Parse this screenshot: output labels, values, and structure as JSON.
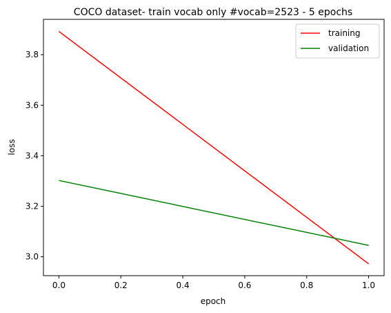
{
  "chart_data": {
    "type": "line",
    "title": "COCO dataset- train vocab only #vocab=2523 - 5 epochs",
    "xlabel": "epoch",
    "ylabel": "loss",
    "xlim": [
      -0.05,
      1.05
    ],
    "ylim": [
      2.925,
      3.94
    ],
    "xticks": [
      0.0,
      0.2,
      0.4,
      0.6,
      0.8,
      1.0
    ],
    "xtick_labels": [
      "0.0",
      "0.2",
      "0.4",
      "0.6",
      "0.8",
      "1.0"
    ],
    "yticks": [
      3.0,
      3.2,
      3.4,
      3.6,
      3.8
    ],
    "ytick_labels": [
      "3.0",
      "3.2",
      "3.4",
      "3.6",
      "3.8"
    ],
    "grid": false,
    "legend_position": "top-right",
    "series": [
      {
        "name": "training",
        "color": "#ff0000",
        "x": [
          0.0,
          1.0
        ],
        "y": [
          3.892,
          2.972
        ]
      },
      {
        "name": "validation",
        "color": "#008000",
        "x": [
          0.0,
          1.0
        ],
        "y": [
          3.302,
          3.045
        ]
      }
    ]
  }
}
